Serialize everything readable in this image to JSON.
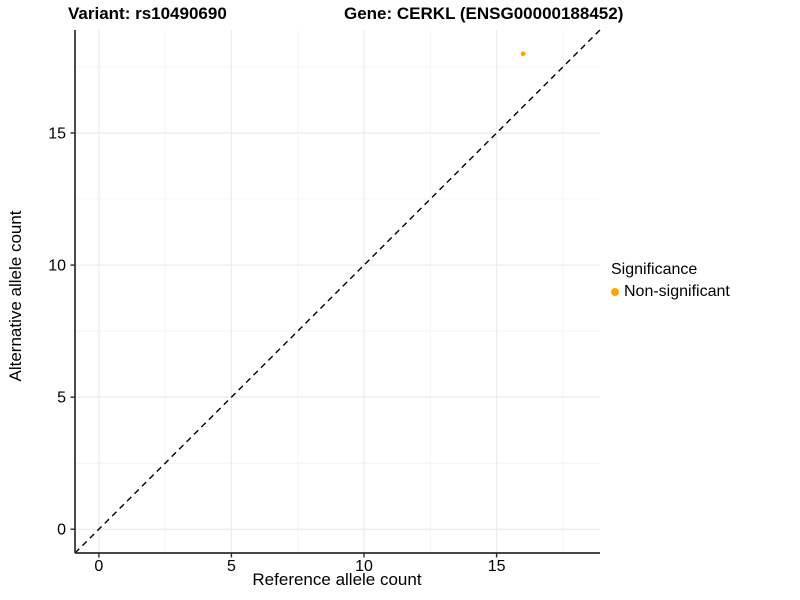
{
  "titles": {
    "variant": "Variant: rs10490690",
    "gene": "Gene: CERKL (ENSG00000188452)"
  },
  "legend": {
    "title": "Significance",
    "items": [
      {
        "label": "Non-significant",
        "color": "#FFA500"
      }
    ]
  },
  "chart_data": {
    "type": "scatter",
    "title": "Variant: rs10490690    Gene: CERKL (ENSG00000188452)",
    "xlabel": "Reference allele count",
    "ylabel": "Alternative allele count",
    "xlim": [
      -0.9,
      18.9
    ],
    "ylim": [
      -0.9,
      18.9
    ],
    "x_ticks": [
      0,
      5,
      10,
      15
    ],
    "y_ticks": [
      0,
      5,
      10,
      15
    ],
    "x_minor_ticks": [
      2.5,
      7.5,
      12.5,
      17.5
    ],
    "y_minor_ticks": [
      2.5,
      7.5,
      12.5,
      17.5
    ],
    "grid": true,
    "legend_position": "right",
    "series": [
      {
        "name": "Non-significant",
        "color": "#FFA500",
        "points": [
          {
            "x": 16,
            "y": 18
          }
        ]
      }
    ],
    "reference_line": {
      "kind": "identity",
      "slope": 1,
      "intercept": 0,
      "style": "dashed",
      "color": "#000000"
    }
  }
}
